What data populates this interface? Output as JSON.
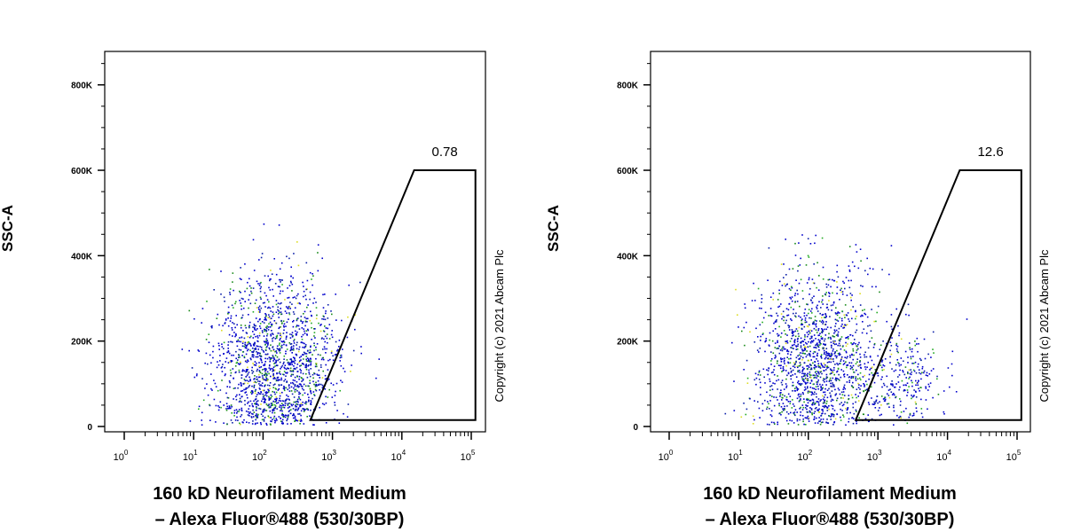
{
  "chart_data": [
    {
      "type": "scatter",
      "title": "",
      "xlabel_line1": "160 kD Neurofilament Medium",
      "xlabel_line2": "– Alexa Fluor®488 (530/30BP)",
      "ylabel": "SSC-A",
      "x_scale": "log",
      "xlim": [
        1,
        100000
      ],
      "ylim": [
        0,
        870000
      ],
      "x_ticks": [
        {
          "value": 1,
          "base": "10",
          "exp": "0"
        },
        {
          "value": 10,
          "base": "10",
          "exp": "1"
        },
        {
          "value": 100,
          "base": "10",
          "exp": "2"
        },
        {
          "value": 1000,
          "base": "10",
          "exp": "3"
        },
        {
          "value": 10000,
          "base": "10",
          "exp": "4"
        },
        {
          "value": 100000,
          "base": "10",
          "exp": "5"
        }
      ],
      "y_ticks": [
        {
          "value": 0,
          "label": "0"
        },
        {
          "value": 200000,
          "label": "200K"
        },
        {
          "value": 400000,
          "label": "400K"
        },
        {
          "value": 600000,
          "label": "600K"
        },
        {
          "value": 800000,
          "label": "800K"
        }
      ],
      "grid": false,
      "gate": {
        "label": "0.78",
        "vertices": [
          [
            480,
            15000
          ],
          [
            15000,
            600000
          ],
          [
            115000,
            600000
          ],
          [
            115000,
            15000
          ]
        ]
      },
      "populations": [
        {
          "log_x_mean": 2.15,
          "log_x_sd": 0.45,
          "y_mean": 150000,
          "y_sd": 100000,
          "n": 1700
        }
      ],
      "point_colors": [
        "#0000cc",
        "#0a1fa8",
        "#1a8a1a",
        "#22aa22",
        "#dddd22"
      ],
      "copyright": "Copyright (c) 2021 Abcam Plc"
    },
    {
      "type": "scatter",
      "title": "",
      "xlabel_line1": "160 kD Neurofilament Medium",
      "xlabel_line2": "– Alexa Fluor®488 (530/30BP)",
      "ylabel": "SSC-A",
      "x_scale": "log",
      "xlim": [
        1,
        100000
      ],
      "ylim": [
        0,
        870000
      ],
      "x_ticks": [
        {
          "value": 1,
          "base": "10",
          "exp": "0"
        },
        {
          "value": 10,
          "base": "10",
          "exp": "1"
        },
        {
          "value": 100,
          "base": "10",
          "exp": "2"
        },
        {
          "value": 1000,
          "base": "10",
          "exp": "3"
        },
        {
          "value": 10000,
          "base": "10",
          "exp": "4"
        },
        {
          "value": 100000,
          "base": "10",
          "exp": "5"
        }
      ],
      "y_ticks": [
        {
          "value": 0,
          "label": "0"
        },
        {
          "value": 200000,
          "label": "200K"
        },
        {
          "value": 400000,
          "label": "400K"
        },
        {
          "value": 600000,
          "label": "600K"
        },
        {
          "value": 800000,
          "label": "800K"
        }
      ],
      "grid": false,
      "gate": {
        "label": "12.6",
        "vertices": [
          [
            480,
            15000
          ],
          [
            15000,
            600000
          ],
          [
            115000,
            600000
          ],
          [
            115000,
            15000
          ]
        ]
      },
      "populations": [
        {
          "log_x_mean": 2.1,
          "log_x_sd": 0.42,
          "y_mean": 160000,
          "y_sd": 105000,
          "n": 1500
        },
        {
          "log_x_mean": 3.35,
          "log_x_sd": 0.3,
          "y_mean": 110000,
          "y_sd": 60000,
          "n": 280
        }
      ],
      "point_colors": [
        "#0000cc",
        "#0a1fa8",
        "#1a8a1a",
        "#22aa22",
        "#dddd22"
      ],
      "copyright": "Copyright (c) 2021 Abcam Plc"
    }
  ]
}
